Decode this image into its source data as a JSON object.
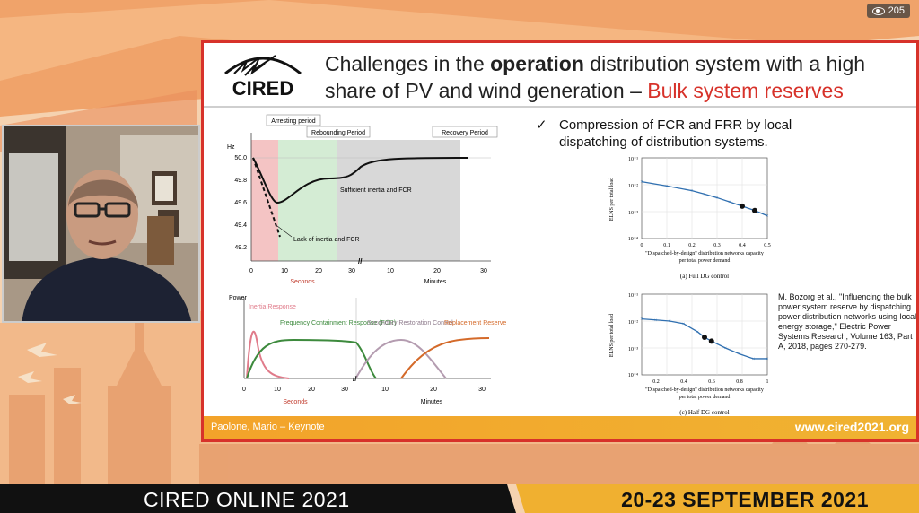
{
  "views": {
    "icon": "eye-icon",
    "count": "205"
  },
  "slide": {
    "logo": "CIRED",
    "title": {
      "part1": "Challenges in the ",
      "bold": "operation",
      "part2": " distribution system with a high share of PV and wind generation – ",
      "highlight": "Bulk system reserves"
    },
    "bullet": {
      "icon": "checkmark-icon",
      "text": "Compression of FCR and FRR by local dispatching of distribution systems."
    },
    "freq_chart": {
      "ylabel": "Hz",
      "yticks": [
        "50.0",
        "49.8",
        "49.6",
        "49.4",
        "49.2"
      ],
      "xticks1": [
        "0",
        "10",
        "20",
        "30"
      ],
      "xticks2": [
        "10",
        "20",
        "30"
      ],
      "xunit1": "Seconds",
      "xunit2": "Minutes",
      "periods": [
        "Arresting period",
        "Rebounding Period",
        "Recovery Period"
      ],
      "annotations": [
        "Sufficient inertia and FCR",
        "Lack of inertia and FCR"
      ]
    },
    "power_chart": {
      "ylabel": "Power",
      "labels": [
        "Inertia Response",
        "Frequency Containment Response (FCR)",
        "Secondary Restoration Control",
        "Replacement Reserve"
      ],
      "xticks1": [
        "0",
        "10",
        "20",
        "30"
      ],
      "xticks2": [
        "10",
        "20",
        "30"
      ],
      "xunit1": "Seconds",
      "xunit2": "Minutes"
    },
    "chart_a": {
      "ylabel": "ELNS per total load",
      "yticks": [
        "10⁻¹",
        "10⁻²",
        "10⁻³",
        "10⁻⁴"
      ],
      "xticks": [
        "0",
        "0.1",
        "0.2",
        "0.3",
        "0.4",
        "0.5"
      ],
      "xlabel1": "\"Dispatched-by-design\" distribution networks capacity",
      "xlabel2": "per total power demand",
      "caption": "(a) Full DG control"
    },
    "chart_c": {
      "ylabel": "ELNS per total load",
      "yticks": [
        "10⁻¹",
        "10⁻²",
        "10⁻³",
        "10⁻⁴"
      ],
      "xticks": [
        "0.2",
        "0.4",
        "0.6",
        "0.8",
        "1"
      ],
      "xlabel1": "\"Dispatched-by-design\" distribution networks capacity",
      "xlabel2": "per total power demand",
      "caption": "(c) Half DG control"
    },
    "reference": "M. Bozorg et al., \"Influencing the bulk power system reserve by dispatching power distribution networks using local energy storage,\" Electric Power Systems Research, Volume 163, Part A, 2018, pages 270-279.",
    "footer_left": "Paolone, Mario – Keynote",
    "footer_right": "www.cired2021.org"
  },
  "banner": {
    "left": "CIRED ONLINE 2021",
    "right": "20-23 SEPTEMBER 2021"
  },
  "chart_data": [
    {
      "type": "line",
      "x": [
        0,
        0.1,
        0.2,
        0.25,
        0.3,
        0.35,
        0.4,
        0.45,
        0.5
      ],
      "series": [
        {
          "values": [
            0.013,
            0.009,
            0.006,
            0.0045,
            0.0033,
            0.0023,
            0.0016,
            0.0011,
            0.0007
          ]
        }
      ],
      "ylim": [
        0.0001,
        0.1
      ],
      "yscale": "log",
      "xlim": [
        0,
        0.5
      ],
      "ylabel": "ELNS per total load",
      "xlabel": "\"Dispatched-by-design\" distribution networks capacity per total power demand",
      "title": "(a) Full DG control"
    },
    {
      "type": "line",
      "x": [
        0.1,
        0.2,
        0.3,
        0.4,
        0.5,
        0.55,
        0.6,
        0.7,
        0.8,
        0.9,
        1.0
      ],
      "series": [
        {
          "values": [
            0.012,
            0.011,
            0.01,
            0.008,
            0.004,
            0.0025,
            0.0018,
            0.001,
            0.0006,
            0.0004,
            0.0004
          ]
        }
      ],
      "ylim": [
        0.0001,
        0.1
      ],
      "yscale": "log",
      "xlim": [
        0.1,
        1.0
      ],
      "ylabel": "ELNS per total load",
      "xlabel": "\"Dispatched-by-design\" distribution networks capacity per total power demand",
      "title": "(c) Half DG control"
    }
  ]
}
